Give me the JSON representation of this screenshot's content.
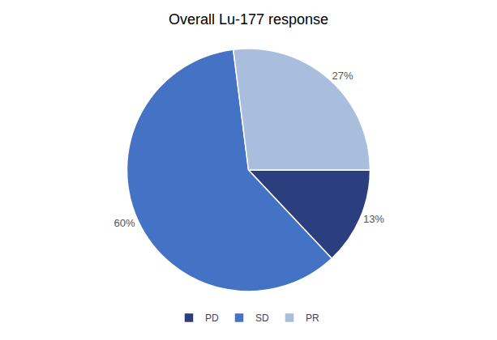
{
  "chart_data": {
    "type": "pie",
    "title": "Overall Lu-177 response",
    "categories": [
      "PD",
      "SD",
      "PR"
    ],
    "values": [
      13,
      60,
      27
    ],
    "value_labels": [
      "13%",
      "60%",
      "27%"
    ],
    "data_labels": true,
    "colors": [
      "#2B3F7E",
      "#4472C4",
      "#A9BEDD"
    ],
    "legend": "bottom"
  }
}
